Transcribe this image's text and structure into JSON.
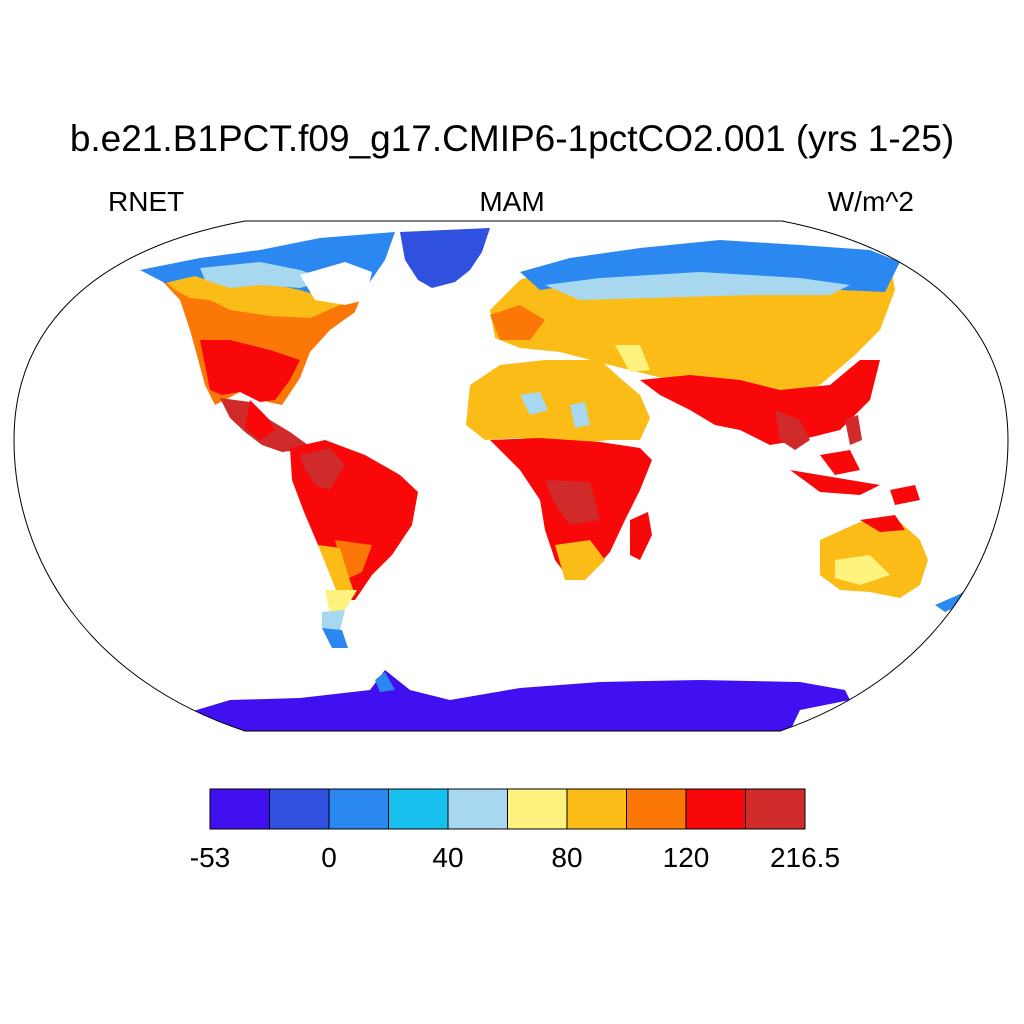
{
  "title": "b.e21.B1PCT.f09_g17.CMIP6-1pctCO2.001 (yrs 1-25)",
  "subtitle_left": "RNET",
  "subtitle_center": "MAM",
  "subtitle_right": "W/m^2",
  "colorbar": {
    "colors": [
      "#4010f0",
      "#3050e0",
      "#2a88f0",
      "#18c0f0",
      "#a8d8f0",
      "#fff380",
      "#fbbc18",
      "#fb7808",
      "#f80808",
      "#d02a2a"
    ],
    "labels": [
      "-53",
      "0",
      "40",
      "80",
      "120",
      "216.5"
    ]
  },
  "ocean_color": "#ffffff",
  "land_outline_color": "#000000"
}
